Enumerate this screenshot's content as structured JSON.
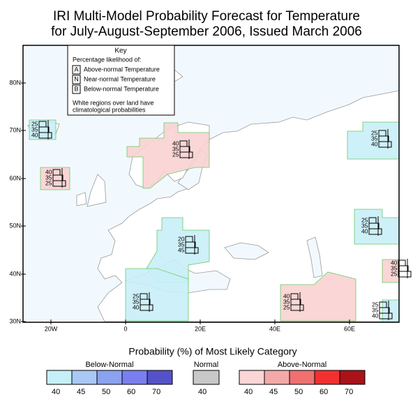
{
  "title": {
    "line1": "IRI Multi-Model Probability Forecast for Temperature",
    "line2": "for July-August-September 2006, Issued March 2006"
  },
  "key": {
    "heading": "Key",
    "subheading": "Percentage likelihood of:",
    "items": [
      {
        "letter": "A",
        "text": "Above-normal Temperature"
      },
      {
        "letter": "N",
        "text": "Near-normal Temperature"
      },
      {
        "letter": "B",
        "text": "Below-normal Temperature"
      }
    ],
    "note_line1": "White regions over land have",
    "note_line2": "climatological probabilities"
  },
  "axes": {
    "lat": [
      "80N",
      "70N",
      "60N",
      "50N",
      "40N",
      "30N"
    ],
    "lon": [
      "20W",
      "0",
      "20E",
      "40E",
      "60E"
    ]
  },
  "forecasts": [
    {
      "values": [
        25,
        35,
        40
      ]
    },
    {
      "values": [
        40,
        35,
        25
      ]
    },
    {
      "values": [
        40,
        35,
        25
      ]
    },
    {
      "values": [
        20,
        35,
        45
      ]
    },
    {
      "values": [
        25,
        35,
        40
      ]
    },
    {
      "values": [
        40,
        35,
        25
      ]
    },
    {
      "values": [
        25,
        35,
        40
      ]
    },
    {
      "values": [
        25,
        35,
        40
      ]
    },
    {
      "values": [
        40,
        35,
        25
      ]
    },
    {
      "values": [
        25,
        35,
        40
      ]
    }
  ],
  "legend": {
    "title": "Probability (%) of Most Likely Category",
    "below": {
      "label": "Below-Normal",
      "ticks": [
        40,
        45,
        50,
        60,
        70
      ]
    },
    "normal": {
      "label": "Normal",
      "ticks": [
        40
      ]
    },
    "above": {
      "label": "Above-Normal",
      "ticks": [
        40,
        45,
        50,
        60,
        70
      ]
    }
  }
}
